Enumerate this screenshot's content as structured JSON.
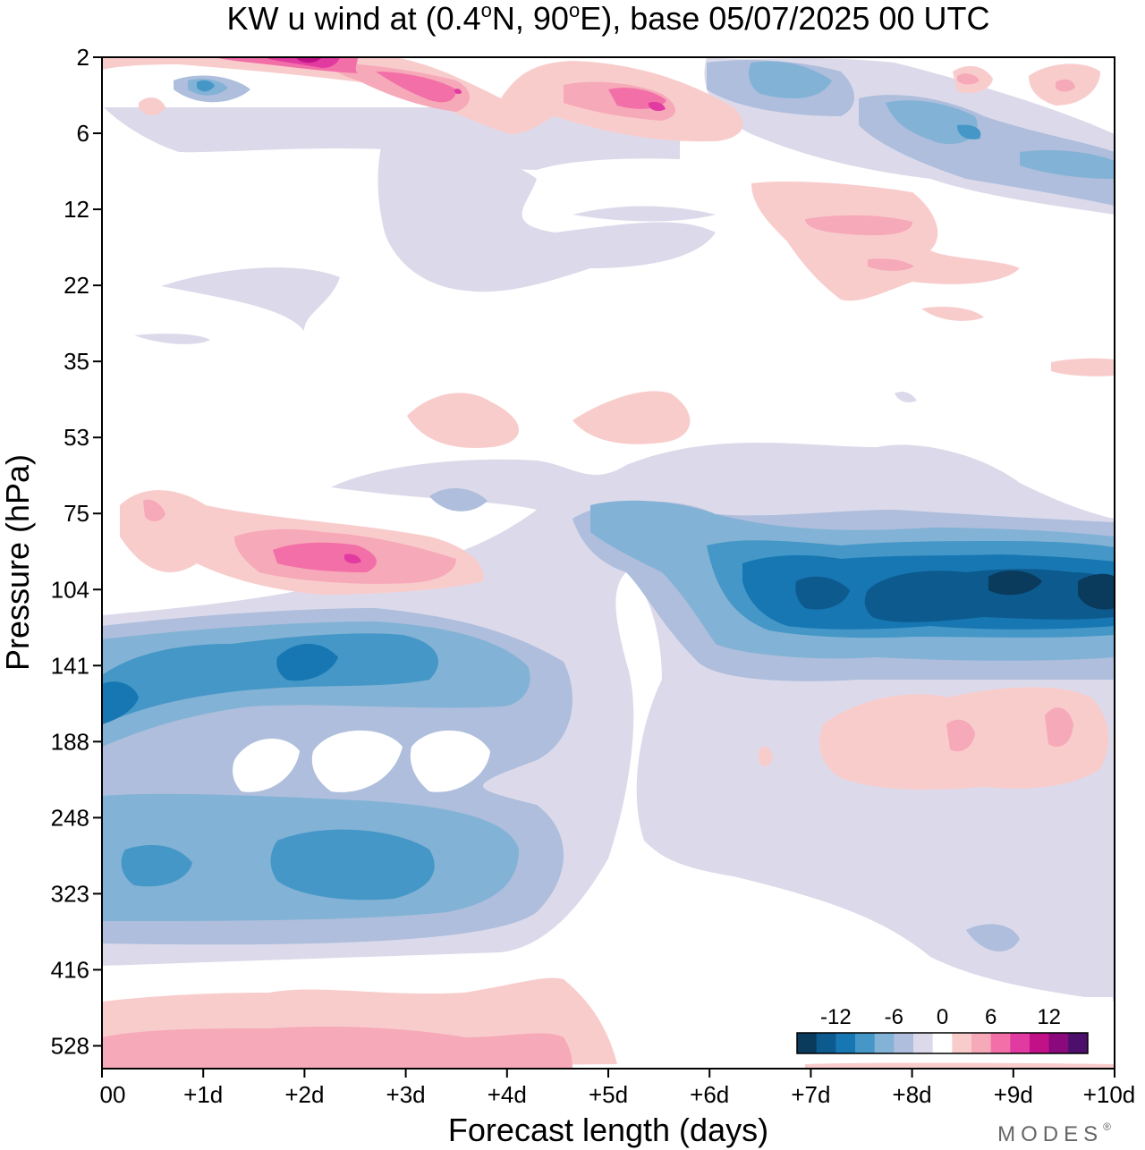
{
  "chart_data": {
    "type": "heatmap",
    "title": "KW u wind at (0.4°N, 90°E),  base 05/07/2025  00 UTC",
    "title_parts": {
      "prefix": "KW u wind at (0.4",
      "deg1": "o",
      "mid": "N, 90",
      "deg2": "o",
      "suffix": "E),  base 05/07/2025  00 UTC"
    },
    "xlabel": "Forecast length (days)",
    "ylabel": "Pressure (hPa)",
    "x_ticks": [
      "00",
      "+1d",
      "+2d",
      "+3d",
      "+4d",
      "+5d",
      "+6d",
      "+7d",
      "+8d",
      "+9d",
      "+10d"
    ],
    "x_range": [
      0,
      10
    ],
    "y_ticks": [
      "2",
      "6",
      "12",
      "22",
      "35",
      "53",
      "75",
      "104",
      "141",
      "188",
      "248",
      "323",
      "416",
      "528"
    ],
    "legend": {
      "labels": [
        "-12",
        "-6",
        "0",
        "6",
        "12"
      ],
      "label_levels": [
        -12,
        -6,
        0,
        6,
        12
      ],
      "levels": [
        -16,
        -14,
        -12,
        -10,
        -8,
        -6,
        -4,
        -2,
        2,
        4,
        6,
        8,
        10,
        12,
        14,
        16
      ],
      "colors": [
        "#0a3a5c",
        "#0d5a8e",
        "#1777b2",
        "#4497c6",
        "#82b2d5",
        "#aebedc",
        "#dcdaea",
        "#ffffff",
        "#f9cccc",
        "#f6a9b9",
        "#f270a7",
        "#e13aa0",
        "#c21188",
        "#8a097c",
        "#4c0f6b"
      ]
    },
    "features": [
      {
        "name": "negative",
        "x": [
          0,
          4.6
        ],
        "p": [
          150,
          430
        ],
        "min": -10
      },
      {
        "name": "negative",
        "x": [
          5.4,
          10
        ],
        "p": [
          70,
          145
        ],
        "min": -16
      },
      {
        "name": "positive",
        "x": [
          0.1,
          3.8
        ],
        "p": [
          72,
          120
        ],
        "max": 10
      },
      {
        "name": "positive",
        "x": [
          7.2,
          10
        ],
        "p": [
          170,
          225
        ],
        "max": 5
      },
      {
        "name": "positive",
        "x": [
          0,
          4.7
        ],
        "p": [
          470,
          560
        ],
        "max": 5
      },
      {
        "name": "positive",
        "x": [
          1.5,
          6.4
        ],
        "p": [
          2,
          6
        ],
        "max": 12
      }
    ]
  },
  "brand": {
    "text": "MODES",
    "mark": "®"
  }
}
